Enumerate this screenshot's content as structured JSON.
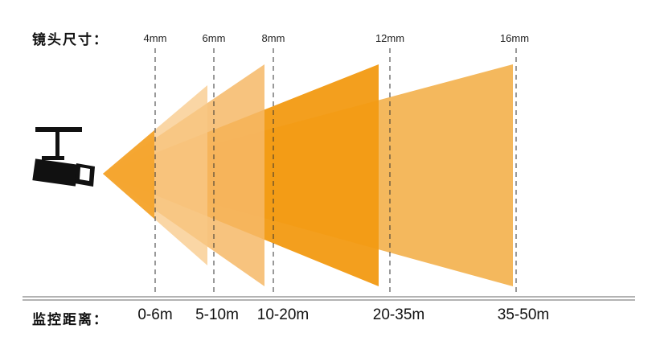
{
  "header": {
    "label": "镜头尺寸："
  },
  "footer": {
    "label": "监控距离："
  },
  "lenses": [
    "4mm",
    "6mm",
    "8mm",
    "12mm",
    "16mm"
  ],
  "distances": [
    "0-6m",
    "5-10m",
    "10-20m",
    "20-35m",
    "35-50m"
  ],
  "colors": {
    "beam_light": "#f7c27a",
    "beam_mid": "#f4ab3d",
    "beam_main": "#f29a12",
    "beam_far": "#f3b24f",
    "camera": "#111111",
    "guide": "#333333"
  },
  "icons": {
    "camera": "cctv-camera-icon"
  }
}
